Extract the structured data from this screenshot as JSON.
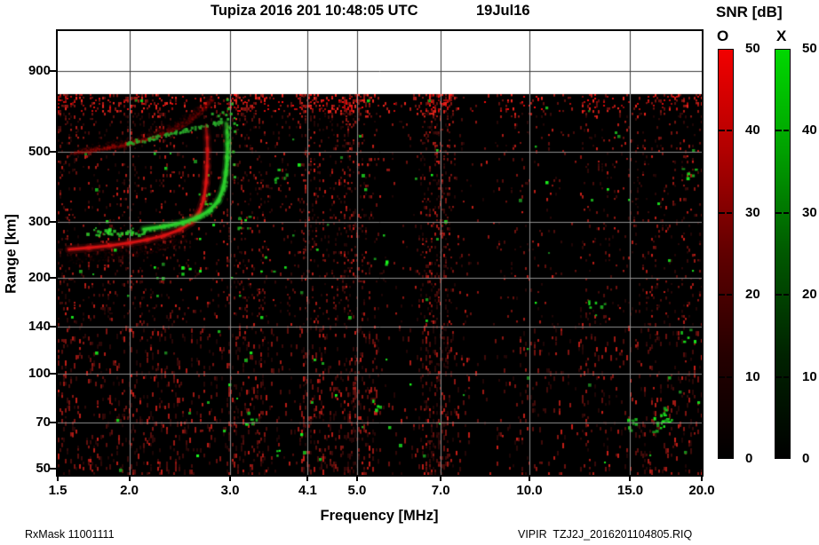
{
  "title": {
    "main": "Tupiza 2016 201 10:48:05 UTC",
    "date": "19Jul16"
  },
  "footer": {
    "left": "RxMask 11001111",
    "right": "VIPIR  TZJ2J_2016201104805.RIQ"
  },
  "colorbar": {
    "title": "SNR [dB]",
    "o_label": "O",
    "x_label": "X",
    "ticks": [
      50,
      40,
      30,
      20,
      10,
      0
    ],
    "dash_ticks": [
      40,
      30,
      20,
      10
    ],
    "o_stops": [
      "#f20000",
      "#b00000",
      "#600000",
      "#250000",
      "#000000"
    ],
    "x_stops": [
      "#00d800",
      "#00a000",
      "#005800",
      "#002200",
      "#000000"
    ]
  },
  "chart_data": {
    "type": "heatmap",
    "title": "Tupiza 2016 201 10:48:05 UTC  19Jul16",
    "xlabel": "Frequency [MHz]",
    "ylabel": "Range [km]",
    "x_scale": "log",
    "x_range_mhz": [
      1.5,
      20.0
    ],
    "x_tick_values": [
      1.5,
      2.0,
      3.0,
      4.1,
      5.0,
      7.0,
      10.0,
      15.0,
      20.0
    ],
    "x_tick_labels": [
      "1.5",
      "2.0",
      "3.0",
      "4.1",
      "5.0",
      "7.0",
      "10.0",
      "15.0",
      "20.0"
    ],
    "y_scale": "log",
    "y_range_km": [
      50,
      1200
    ],
    "y_tick_values": [
      50,
      70,
      100,
      140,
      200,
      300,
      500,
      900
    ],
    "snr_range_db": [
      0,
      50
    ],
    "data_ceiling_km": 760,
    "o_mode_color": "#dd1414",
    "x_mode_color": "#2ed22e",
    "foF2_mhz": 2.74,
    "fxF2_mhz": 2.97,
    "o_trace_f_km": [
      [
        1.57,
        246
      ],
      [
        1.7,
        249
      ],
      [
        1.85,
        253
      ],
      [
        2.0,
        258
      ],
      [
        2.15,
        264
      ],
      [
        2.3,
        272
      ],
      [
        2.45,
        284
      ],
      [
        2.57,
        300
      ],
      [
        2.65,
        322
      ],
      [
        2.7,
        355
      ],
      [
        2.725,
        400
      ],
      [
        2.735,
        450
      ],
      [
        2.74,
        505
      ],
      [
        2.735,
        555
      ],
      [
        2.725,
        595
      ]
    ],
    "x_trace_f_km": [
      [
        2.12,
        285
      ],
      [
        2.3,
        291
      ],
      [
        2.48,
        299
      ],
      [
        2.63,
        310
      ],
      [
        2.76,
        326
      ],
      [
        2.86,
        350
      ],
      [
        2.92,
        385
      ],
      [
        2.95,
        430
      ],
      [
        2.965,
        480
      ],
      [
        2.97,
        530
      ],
      [
        2.965,
        575
      ],
      [
        2.955,
        615
      ]
    ],
    "x_flat_scatter": {
      "f_min": 1.66,
      "f_max": 2.12,
      "km_center": 281,
      "km_jitter": 7,
      "count": 30
    },
    "x_top_scatter": [
      [
        2.96,
        640
      ],
      [
        2.98,
        665
      ],
      [
        2.95,
        690
      ],
      [
        2.99,
        715
      ],
      [
        2.96,
        738
      ],
      [
        3.02,
        620
      ],
      [
        3.04,
        585
      ],
      [
        3.0,
        600
      ],
      [
        3.03,
        505
      ],
      [
        3.05,
        420
      ],
      [
        3.02,
        460
      ]
    ],
    "second_hop_o_center_f_km": [
      [
        1.57,
        498
      ],
      [
        1.75,
        512
      ],
      [
        1.95,
        530
      ],
      [
        2.15,
        552
      ],
      [
        2.35,
        580
      ],
      [
        2.52,
        615
      ],
      [
        2.65,
        658
      ],
      [
        2.74,
        700
      ],
      [
        2.79,
        735
      ]
    ],
    "second_hop_x_line_f_km": [
      [
        1.95,
        532
      ],
      [
        2.2,
        557
      ],
      [
        2.45,
        583
      ],
      [
        2.7,
        607
      ],
      [
        2.93,
        630
      ]
    ],
    "second_hop_x_extra_dots": [
      [
        2.78,
        665
      ],
      [
        2.8,
        625
      ],
      [
        2.85,
        655
      ],
      [
        2.9,
        672
      ],
      [
        2.88,
        640
      ],
      [
        2.94,
        660
      ]
    ],
    "noise": {
      "seed": 20160719,
      "red_density": 0.12,
      "green_density": 0.005,
      "dark_bands_mhz": [
        [
          3.45,
          3.95
        ],
        [
          5.45,
          6.35
        ],
        [
          7.9,
          8.7
        ],
        [
          11.5,
          12.2
        ]
      ],
      "bright_bands_mhz": [
        [
          2.95,
          3.2
        ],
        [
          4.0,
          4.35
        ],
        [
          6.55,
          7.25
        ],
        [
          9.6,
          10.4
        ],
        [
          13.5,
          14.5
        ]
      ],
      "green_cluster_count": 16
    }
  }
}
